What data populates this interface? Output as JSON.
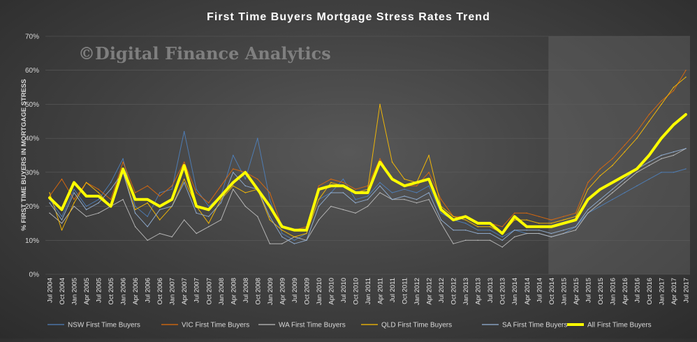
{
  "chart_data": {
    "type": "line",
    "title": "First Time Buyers Mortgage Stress Rates Trend",
    "watermark": "©Digital Finance Analytics",
    "ylabel": "% FIRST TIME BUYERS IN MORTGAGE STRESS",
    "xlabel": "",
    "ylim": [
      0,
      70
    ],
    "yticks": [
      "0%",
      "10%",
      "20%",
      "30%",
      "40%",
      "50%",
      "60%",
      "70%"
    ],
    "x_labels": [
      "Jul 2004",
      "Oct 2004",
      "Jan 2005",
      "Apr 2005",
      "Jul 2005",
      "Oct 2005",
      "Jan 2006",
      "Apr 2006",
      "Jul 2006",
      "Oct 2006",
      "Jan 2007",
      "Apr 2007",
      "Jul 2007",
      "Oct 2007",
      "Jan 2008",
      "Apr 2008",
      "Jul 2008",
      "Oct 2008",
      "Jan 2009",
      "Apr 2009",
      "Jul 2009",
      "Oct 2009",
      "Jan 2010",
      "Apr 2010",
      "Jul 2010",
      "Oct 2010",
      "Jan 2011",
      "Apr 2011",
      "Jul 2011",
      "Oct 2011",
      "Jan 2012",
      "Apr 2012",
      "Jul 2012",
      "Oct 2012",
      "Jan 2013",
      "Apr 2013",
      "Jul 2013",
      "Oct 2013",
      "Jan 2014",
      "Apr 2014",
      "Jul 2014",
      "Oct 2014",
      "Jan 2015",
      "Apr 2015",
      "Jul 2015",
      "Oct 2015",
      "Jan 2016",
      "Apr 2016",
      "Jul 2016",
      "Oct 2016",
      "Jan 2017",
      "Apr 2017",
      "Jul 2017"
    ],
    "projection_start": "Oct 2014",
    "legend_position": "bottom",
    "grid": true,
    "series": [
      {
        "name": "NSW First Time Buyers",
        "color": "#4f81bd",
        "width": 1,
        "values": [
          22,
          17,
          25,
          20,
          22,
          27,
          34,
          20,
          17,
          24,
          25,
          42,
          25,
          20,
          23,
          35,
          28,
          40,
          22,
          12,
          10,
          12,
          22,
          24,
          28,
          22,
          23,
          27,
          24,
          25,
          24,
          26,
          18,
          16,
          15,
          13,
          13,
          11,
          13,
          12,
          12,
          11,
          12,
          14,
          18,
          20,
          22,
          24,
          26,
          28,
          30,
          30,
          31
        ]
      },
      {
        "name": "VIC First Time Buyers",
        "color": "#e36c0a",
        "width": 1,
        "values": [
          23,
          28,
          22,
          27,
          25,
          22,
          33,
          24,
          26,
          23,
          26,
          33,
          24,
          21,
          26,
          31,
          30,
          28,
          24,
          14,
          13,
          14,
          26,
          28,
          27,
          25,
          26,
          34,
          28,
          26,
          26,
          30,
          22,
          17,
          17,
          15,
          15,
          14,
          18,
          18,
          17,
          16,
          17,
          18,
          27,
          31,
          34,
          38,
          42,
          47,
          51,
          54,
          60
        ]
      },
      {
        "name": "WA First Time Buyers",
        "color": "#bfbfbf",
        "width": 1,
        "values": [
          18,
          15,
          20,
          17,
          18,
          20,
          22,
          14,
          10,
          12,
          11,
          16,
          12,
          14,
          16,
          25,
          20,
          17,
          9,
          9,
          11,
          10,
          16,
          20,
          19,
          18,
          20,
          24,
          22,
          22,
          21,
          22,
          15,
          9,
          10,
          10,
          10,
          8,
          11,
          12,
          12,
          11,
          12,
          13,
          18,
          21,
          24,
          27,
          30,
          32,
          34,
          35,
          37
        ]
      },
      {
        "name": "QLD First Time Buyers",
        "color": "#ffc000",
        "width": 1,
        "values": [
          24,
          13,
          21,
          27,
          24,
          20,
          30,
          19,
          21,
          16,
          20,
          28,
          20,
          15,
          22,
          26,
          24,
          25,
          16,
          13,
          11,
          12,
          22,
          27,
          26,
          24,
          25,
          50,
          33,
          28,
          27,
          35,
          20,
          17,
          16,
          14,
          14,
          12,
          16,
          16,
          15,
          15,
          16,
          17,
          25,
          29,
          32,
          36,
          40,
          45,
          50,
          55,
          58
        ]
      },
      {
        "name": "SA First Time Buyers",
        "color": "#95b3d7",
        "width": 1,
        "values": [
          21,
          16,
          24,
          19,
          21,
          25,
          30,
          18,
          14,
          19,
          20,
          27,
          18,
          17,
          21,
          30,
          26,
          25,
          17,
          11,
          9,
          10,
          20,
          24,
          24,
          21,
          22,
          26,
          22,
          23,
          22,
          24,
          16,
          13,
          13,
          12,
          12,
          10,
          13,
          13,
          13,
          12,
          13,
          14,
          19,
          22,
          25,
          28,
          31,
          33,
          35,
          36,
          37
        ]
      },
      {
        "name": "All First Time Buyers",
        "color": "#ffff00",
        "width": 4,
        "values": [
          22.5,
          19,
          27,
          23,
          23,
          20,
          31,
          22,
          22,
          20,
          22,
          32,
          20,
          19,
          23,
          27,
          30,
          25,
          20,
          14,
          13,
          13,
          25,
          26,
          26,
          24,
          24,
          33,
          28,
          26,
          27,
          28,
          19,
          16,
          17,
          15,
          15,
          12,
          17,
          14,
          14,
          14,
          15,
          16,
          22,
          25,
          27,
          29,
          31,
          35,
          40,
          44,
          47
        ]
      }
    ]
  }
}
